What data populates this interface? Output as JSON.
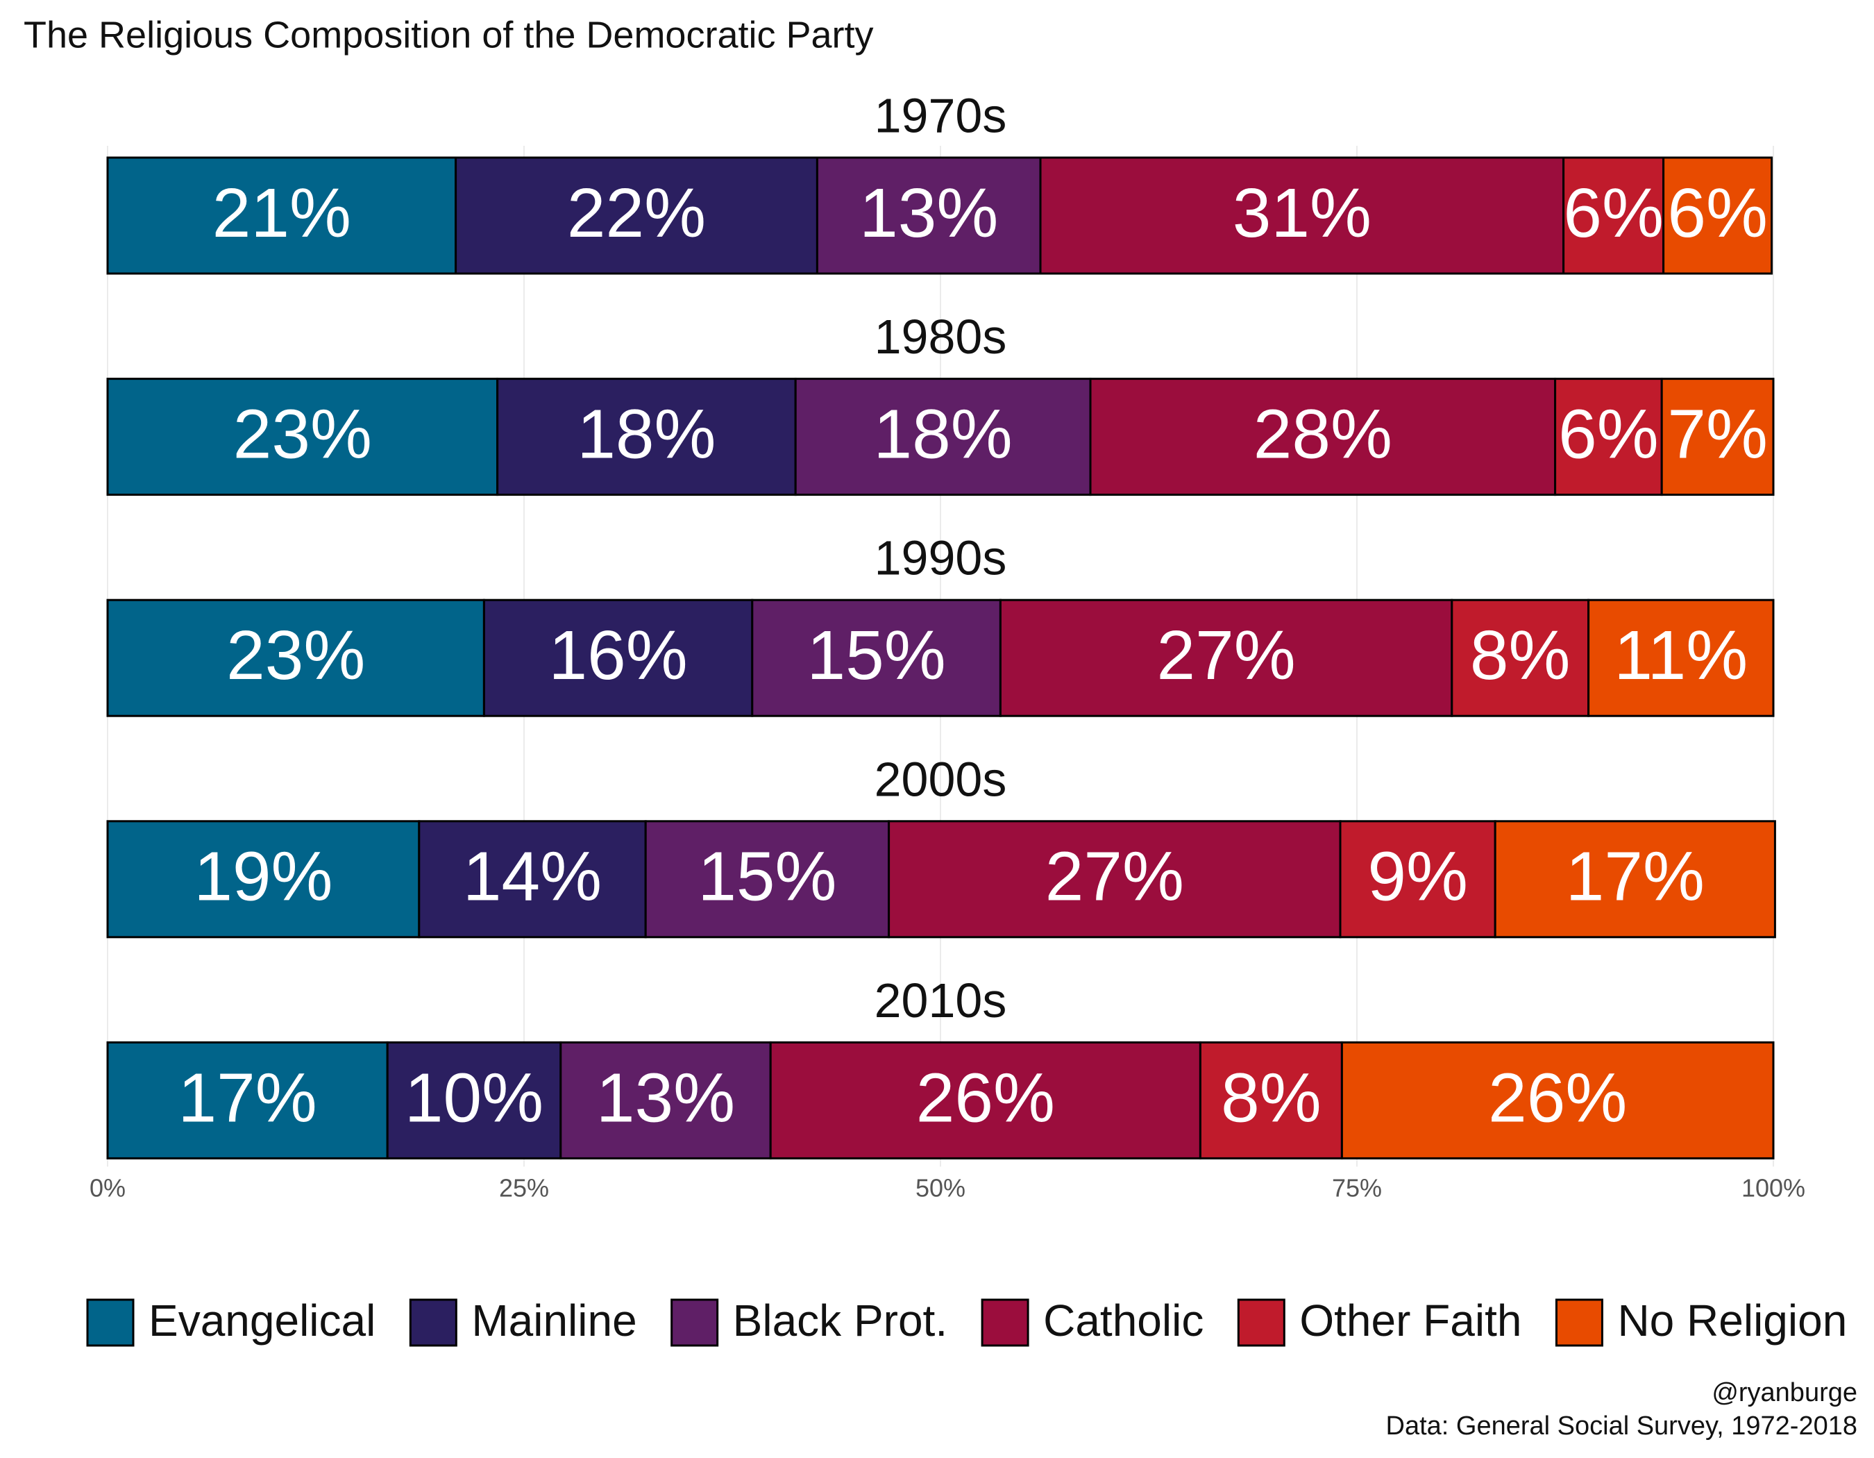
{
  "chart_data": {
    "type": "stacked_bar",
    "title": "The Religious Composition of the Democratic Party",
    "caption": [
      "@ryanburge",
      "Data: General Social Survey, 1972-2018"
    ],
    "categories": [
      "1970s",
      "1980s",
      "1990s",
      "2000s",
      "2010s"
    ],
    "series": [
      {
        "name": "Evangelical",
        "color": "#01648a",
        "values": [
          20.9,
          23.4,
          22.6,
          18.7,
          16.8
        ],
        "value_labels": [
          "21%",
          "23%",
          "23%",
          "19%",
          "17%"
        ]
      },
      {
        "name": "Mainline",
        "color": "#2b1f60",
        "values": [
          21.7,
          17.9,
          16.1,
          13.6,
          10.4
        ],
        "value_labels": [
          "22%",
          "18%",
          "16%",
          "14%",
          "10%"
        ]
      },
      {
        "name": "Black Prot.",
        "color": "#5f1f66",
        "values": [
          13.4,
          17.7,
          14.9,
          14.6,
          12.6
        ],
        "value_labels": [
          "13%",
          "18%",
          "15%",
          "15%",
          "13%"
        ]
      },
      {
        "name": "Catholic",
        "color": "#9b0d3d",
        "values": [
          31.4,
          27.9,
          27.1,
          27.1,
          25.8
        ],
        "value_labels": [
          "31%",
          "28%",
          "27%",
          "27%",
          "26%"
        ]
      },
      {
        "name": "Other Faith",
        "color": "#c01b2c",
        "values": [
          6.0,
          6.4,
          8.2,
          9.3,
          8.5
        ],
        "value_labels": [
          "6%",
          "6%",
          "8%",
          "9%",
          "8%"
        ]
      },
      {
        "name": "No Religion",
        "color": "#e84b00",
        "values": [
          6.5,
          6.7,
          11.1,
          16.8,
          25.9
        ],
        "value_labels": [
          "6%",
          "7%",
          "11%",
          "17%",
          "26%"
        ]
      }
    ],
    "xlim": [
      0,
      100
    ],
    "xticks": [
      {
        "value": 0,
        "label": "0%"
      },
      {
        "value": 25,
        "label": "25%"
      },
      {
        "value": 50,
        "label": "50%"
      },
      {
        "value": 75,
        "label": "75%"
      },
      {
        "value": 100,
        "label": "100%"
      }
    ],
    "grid": true,
    "legend": "bottom"
  }
}
